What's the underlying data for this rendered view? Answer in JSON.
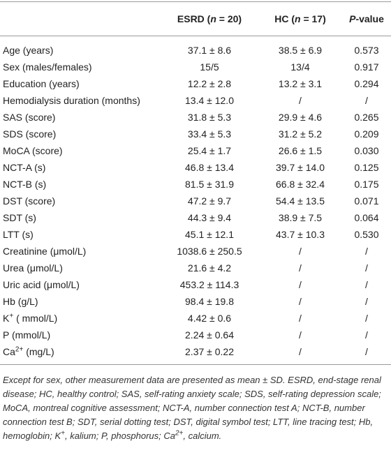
{
  "table": {
    "header": [
      [
        "ESRD (",
        "n",
        " = 20)"
      ],
      [
        "HC (",
        "n",
        " = 17)"
      ],
      [
        "P",
        "-value"
      ]
    ],
    "rows": [
      [
        "Age (years)",
        "37.1 ± 8.6",
        "38.5 ± 6.9",
        "0.573"
      ],
      [
        "Sex (males/females)",
        "15/5",
        "13/4",
        "0.917"
      ],
      [
        "Education (years)",
        "12.2 ± 2.8",
        "13.2 ± 3.1",
        "0.294"
      ],
      [
        "Hemodialysis duration (months)",
        "13.4 ± 12.0",
        "/",
        "/"
      ],
      [
        "SAS (score)",
        "31.8 ± 5.3",
        "29.9 ± 4.6",
        "0.265"
      ],
      [
        "SDS (score)",
        "33.4 ± 5.3",
        "31.2 ± 5.2",
        "0.209"
      ],
      [
        "MoCA (score)",
        "25.4 ± 1.7",
        "26.6 ± 1.5",
        "0.030"
      ],
      [
        "NCT-A (s)",
        "46.8 ± 13.4",
        "39.7 ± 14.0",
        "0.125"
      ],
      [
        "NCT-B (s)",
        "81.5 ± 31.9",
        "66.8 ± 32.4",
        "0.175"
      ],
      [
        "DST (score)",
        "47.2 ± 9.7",
        "54.4 ± 13.5",
        "0.071"
      ],
      [
        "SDT (s)",
        "44.3 ± 9.4",
        "38.9 ± 7.5",
        "0.064"
      ],
      [
        "LTT (s)",
        "45.1 ± 12.1",
        "43.7 ± 10.3",
        "0.530"
      ],
      [
        "Creatinine (μmol/L)",
        "1038.6 ± 250.5",
        "/",
        "/"
      ],
      [
        "Urea (μmol/L)",
        "21.6 ± 4.2",
        "/",
        "/"
      ],
      [
        "Uric acid (μmol/L)",
        "453.2 ± 114.3",
        "/",
        "/"
      ],
      [
        "Hb (g/L)",
        "98.4 ± 19.8",
        "/",
        "/"
      ],
      [
        [
          "K",
          "+",
          " ( mmol/L)"
        ],
        "4.42 ± 0.6",
        "/",
        "/"
      ],
      [
        "P (mmol/L)",
        "2.24 ± 0.64",
        "/",
        "/"
      ],
      [
        [
          "Ca",
          "2+",
          " (mg/L)"
        ],
        "2.37 ± 0.22",
        "/",
        "/"
      ]
    ],
    "note": [
      "Except for sex, other measurement data are presented as mean ± SD. ESRD, end-stage renal disease; HC, healthy control; SAS, self-rating anxiety scale; SDS, self-rating depression scale; MoCA, montreal cognitive assessment; NCT-A, number connection test A; NCT-B, number connection test B; SDT, serial dotting test; DST, digital symbol test; LTT, line tracing test; Hb, hemoglobin; K",
      "+",
      ", kalium; P, phosphorus; Ca",
      "2+",
      ", calcium."
    ]
  }
}
